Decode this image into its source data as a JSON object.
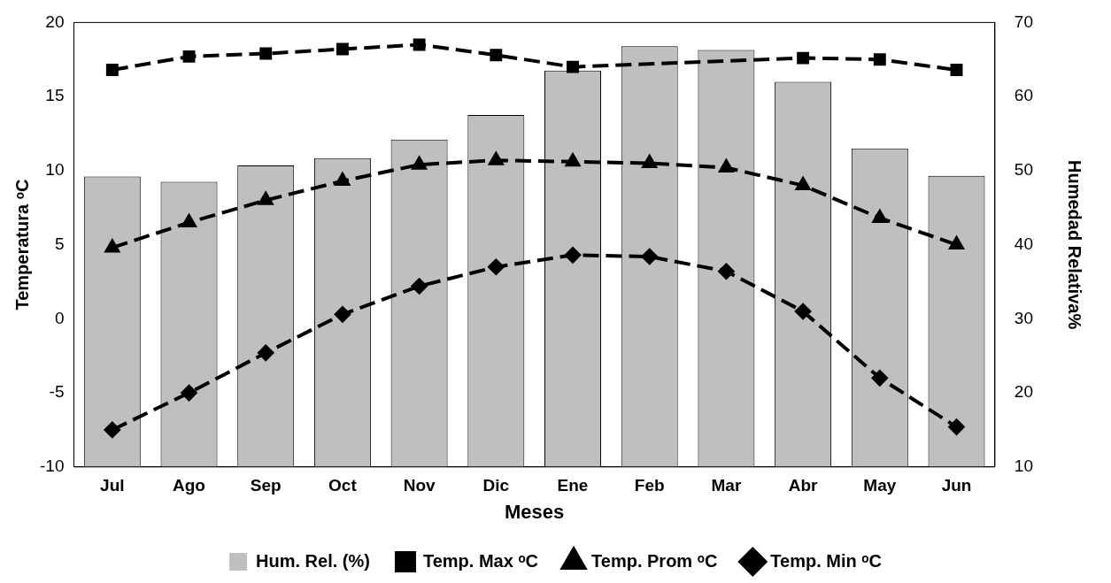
{
  "chart_data": {
    "type": "bar",
    "xlabel": "Meses",
    "ylabel": "Temperatura ᵒC",
    "y2label": "Humedad Relativa%",
    "categories": [
      "Jul",
      "Ago",
      "Sep",
      "Oct",
      "Nov",
      "Dic",
      "Ene",
      "Feb",
      "Mar",
      "Abr",
      "May",
      "Jun"
    ],
    "series": [
      {
        "name": "Hum. Rel. (%)",
        "axis": "y2",
        "color": "#bfbfbf",
        "values": [
          49.2,
          48.5,
          50.7,
          51.7,
          54.2,
          57.5,
          63.5,
          66.8,
          66.3,
          62,
          53,
          49.3
        ]
      },
      {
        "name": "Temp. Max ᵒC",
        "type": "line",
        "marker": "square",
        "color": "#000000",
        "values": [
          16.8,
          17.7,
          17.9,
          18.2,
          18.5,
          17.8,
          17.0,
          null,
          null,
          17.6,
          17.5,
          16.8
        ]
      },
      {
        "name": "Temp. Prom ᵒC",
        "type": "line",
        "marker": "triangle",
        "color": "#000000",
        "values": [
          4.8,
          6.5,
          8.0,
          9.3,
          10.4,
          10.7,
          10.6,
          10.5,
          10.2,
          9.0,
          6.8,
          5.0
        ]
      },
      {
        "name": "Temp. Min ᵒC",
        "type": "line",
        "marker": "diamond",
        "color": "#000000",
        "values": [
          -7.5,
          -5.0,
          -2.3,
          0.3,
          2.2,
          3.5,
          4.3,
          4.2,
          3.2,
          0.5,
          -4.0,
          -7.3
        ]
      }
    ],
    "ylim": [
      -10,
      20
    ],
    "yticks": [
      -10,
      -5,
      0,
      5,
      10,
      15,
      20
    ],
    "y2lim": [
      10,
      70
    ],
    "y2ticks": [
      10,
      20,
      30,
      40,
      50,
      60,
      70
    ],
    "grid": false,
    "legend": "bottom",
    "line_style": "dashed"
  }
}
